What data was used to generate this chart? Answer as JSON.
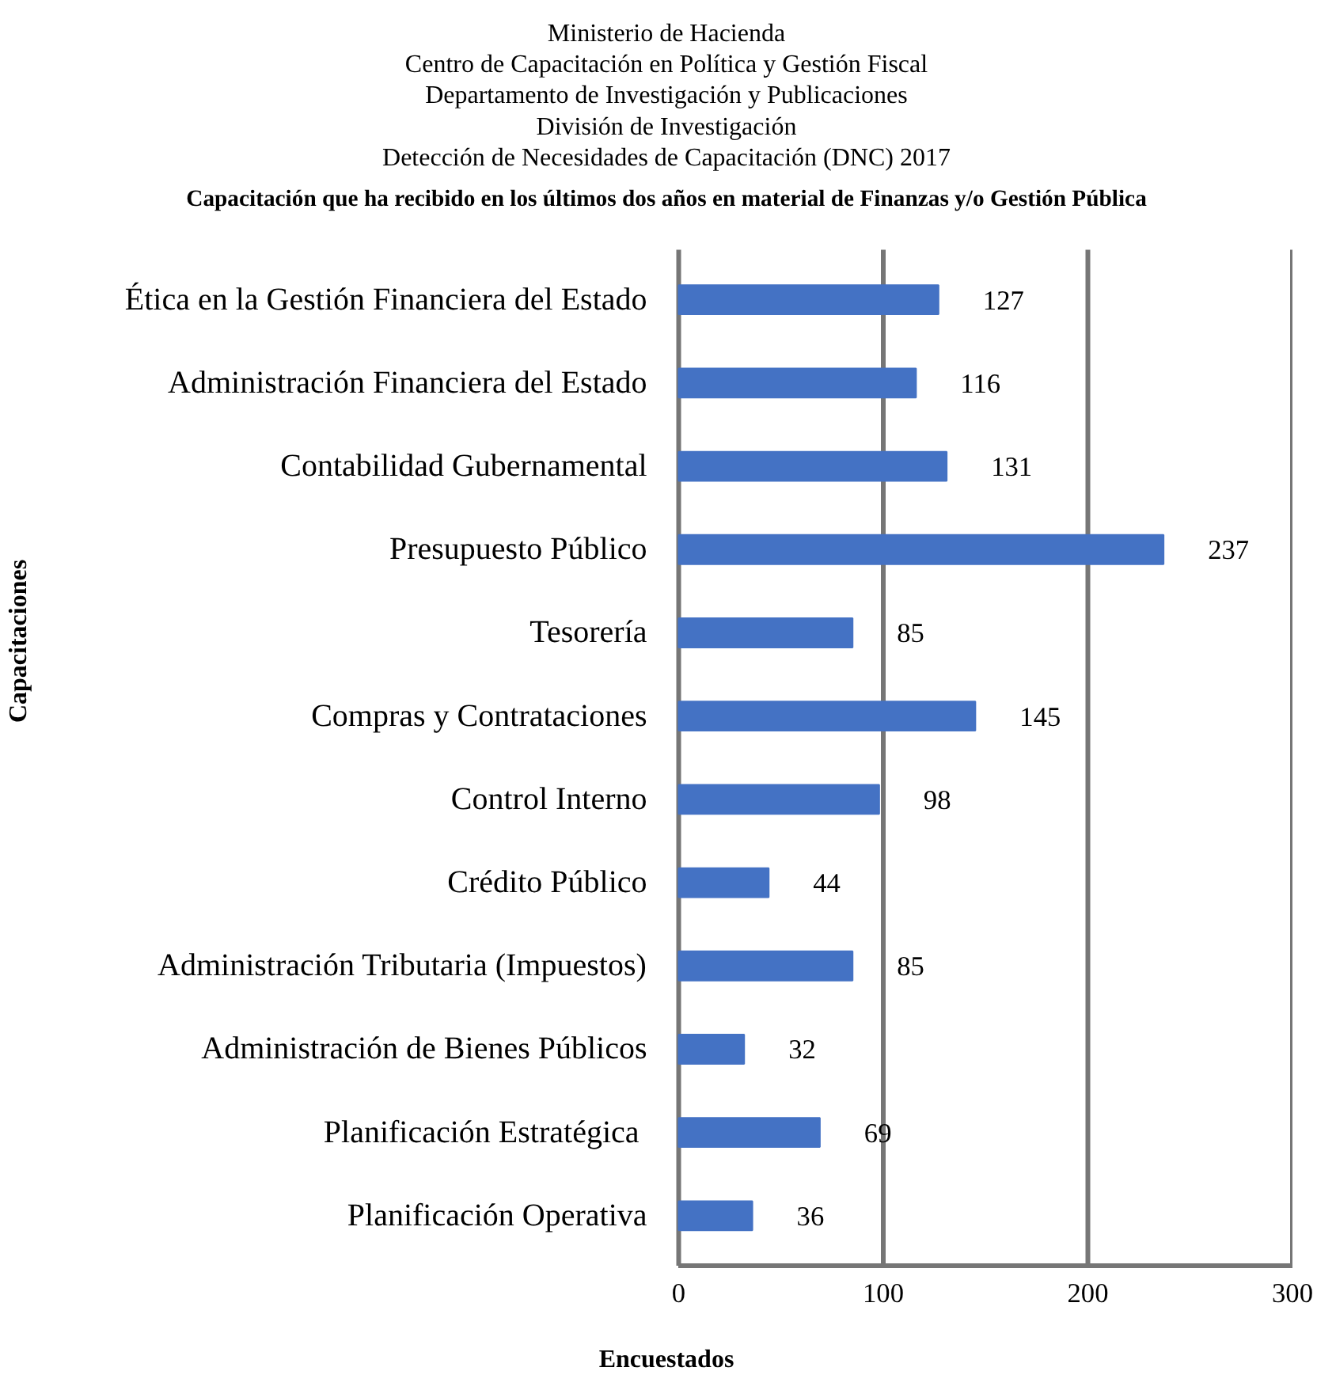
{
  "chart_data": {
    "type": "bar",
    "orientation": "horizontal",
    "title": "Ministerio de Hacienda\nCentro de Capacitación en Política y Gestión Fiscal\nDepartamento de Investigación y Publicaciones\nDivisión de Investigación\nDetección de Necesidades de Capacitación (DNC) 2017",
    "subtitle": "Capacitación que ha recibido en los últimos dos años en material de Finanzas y/o Gestión Pública",
    "xlabel": "Encuestados",
    "ylabel": "Capacitaciones",
    "categories": [
      "Ética en la Gestión Financiera del Estado",
      "Administración Financiera del Estado",
      "Contabilidad Gubernamental",
      "Presupuesto Público",
      "Tesorería",
      "Compras y Contrataciones",
      "Control Interno",
      "Crédito Público",
      "Administración Tributaria (Impuestos)",
      "Administración de Bienes Públicos",
      "Planificación  Estratégica",
      "Planificación Operativa"
    ],
    "values": [
      127,
      116,
      131,
      237,
      85,
      145,
      98,
      44,
      85,
      32,
      69,
      36
    ],
    "color": "#4472c4",
    "data_labels": true,
    "grid": "x",
    "xlim": [
      0,
      300
    ],
    "xticks": [
      0,
      100,
      200,
      300
    ]
  }
}
